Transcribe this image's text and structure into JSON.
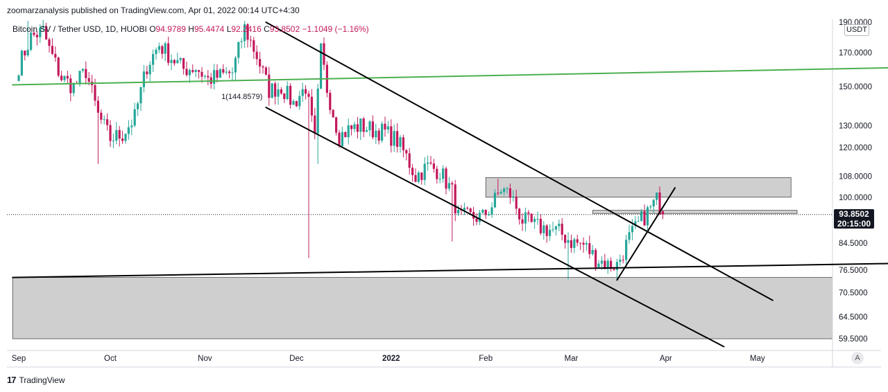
{
  "header": {
    "published_by": "zoomarzanalysis published on TradingView.com, Apr 01, 2022 00:14 UTC+4:30"
  },
  "legend": {
    "symbol": "Bitcoin SV / Tether USD, 1D, HUOBI",
    "open_label": "O",
    "open": "94.9789",
    "high_label": "H",
    "high": "95.4474",
    "low_label": "L",
    "low": "92.2416",
    "close_label": "C",
    "close": "93.8502",
    "change": "−1.1049 (−1.16%)"
  },
  "price_axis": {
    "unit": "USDT",
    "last_price": "93.8502",
    "countdown": "20:15:00"
  },
  "footer": {
    "brand": "TradingView"
  },
  "auto_button": "A",
  "annotation": {
    "text": "1(144.8579)"
  },
  "colors": {
    "up": "#26a69a",
    "down": "#c2185b",
    "trendline": "#4caf50",
    "zone": "#cfcfcf",
    "lines": "#000000"
  },
  "chart_data": {
    "type": "candlestick",
    "title": "Bitcoin SV / Tether USD, 1D, HUOBI",
    "y_scale": "log",
    "ylim": [
      57,
      192
    ],
    "y_ticks": [
      {
        "value": 190,
        "label": "190.0000"
      },
      {
        "value": 170,
        "label": "170.0000"
      },
      {
        "value": 150,
        "label": "150.0000"
      },
      {
        "value": 130,
        "label": "130.0000"
      },
      {
        "value": 120,
        "label": "120.0000"
      },
      {
        "value": 108,
        "label": "108.0000"
      },
      {
        "value": 100,
        "label": "100.0000"
      },
      {
        "value": 84.5,
        "label": "84.5000"
      },
      {
        "value": 76.5,
        "label": "76.5000"
      },
      {
        "value": 70.5,
        "label": "70.5000"
      },
      {
        "value": 64.5,
        "label": "64.5000"
      },
      {
        "value": 59.5,
        "label": "59.5000"
      }
    ],
    "x_ticks": [
      {
        "day": 0,
        "label": "Sep"
      },
      {
        "day": 30,
        "label": "Oct"
      },
      {
        "day": 61,
        "label": "Nov"
      },
      {
        "day": 91,
        "label": "Dec"
      },
      {
        "day": 122,
        "label": "2022"
      },
      {
        "day": 153,
        "label": "Feb"
      },
      {
        "day": 181,
        "label": "Mar"
      },
      {
        "day": 212,
        "label": "Apr"
      },
      {
        "day": 242,
        "label": "May"
      }
    ],
    "close_anchors": [
      [
        0,
        162
      ],
      [
        4,
        180
      ],
      [
        8,
        184
      ],
      [
        10,
        172
      ],
      [
        14,
        155
      ],
      [
        18,
        150
      ],
      [
        22,
        159
      ],
      [
        26,
        135
      ],
      [
        30,
        124
      ],
      [
        34,
        126
      ],
      [
        38,
        134
      ],
      [
        42,
        162
      ],
      [
        46,
        175
      ],
      [
        50,
        167
      ],
      [
        54,
        160
      ],
      [
        58,
        161
      ],
      [
        62,
        154
      ],
      [
        66,
        156
      ],
      [
        70,
        158
      ],
      [
        74,
        186
      ],
      [
        78,
        168
      ],
      [
        82,
        148
      ],
      [
        86,
        150
      ],
      [
        90,
        141
      ],
      [
        94,
        150
      ],
      [
        97,
        123
      ],
      [
        99,
        171
      ],
      [
        101,
        149
      ],
      [
        105,
        125
      ],
      [
        108,
        128
      ],
      [
        112,
        130
      ],
      [
        116,
        128
      ],
      [
        120,
        127
      ],
      [
        124,
        123
      ],
      [
        127,
        116
      ],
      [
        130,
        108
      ],
      [
        134,
        112
      ],
      [
        138,
        110
      ],
      [
        142,
        102
      ],
      [
        144,
        93
      ],
      [
        148,
        93
      ],
      [
        152,
        93
      ],
      [
        155,
        97
      ],
      [
        158,
        103
      ],
      [
        161,
        101
      ],
      [
        165,
        92
      ],
      [
        169,
        90
      ],
      [
        173,
        89
      ],
      [
        177,
        88
      ],
      [
        181,
        85
      ],
      [
        185,
        84
      ],
      [
        189,
        80
      ],
      [
        193,
        78
      ],
      [
        196,
        78
      ],
      [
        200,
        86
      ],
      [
        204,
        92
      ],
      [
        207,
        96
      ],
      [
        209,
        99
      ],
      [
        210,
        97
      ],
      [
        211,
        93.85
      ]
    ],
    "extreme_wicks": [
      {
        "day": 3,
        "high": 191
      },
      {
        "day": 26,
        "low": 113
      },
      {
        "day": 74,
        "high": 191
      },
      {
        "day": 95,
        "low": 80
      },
      {
        "day": 99,
        "high": 175
      },
      {
        "day": 98,
        "low": 113
      },
      {
        "day": 142,
        "low": 85
      },
      {
        "day": 157,
        "high": 107
      },
      {
        "day": 180,
        "low": 74
      },
      {
        "day": 196,
        "low": 74
      },
      {
        "day": 209,
        "high": 101
      }
    ],
    "last_candle": {
      "open": 94.9789,
      "high": 95.4474,
      "low": 92.2416,
      "close": 93.8502
    },
    "last_price_line": 93.8502,
    "zones": [
      {
        "from_day": 153,
        "to_day": 253,
        "low": 100,
        "high": 107.5
      },
      {
        "from_day": 188,
        "to_day": 255,
        "low": 94.2,
        "high": 95.3
      },
      {
        "from_day": -2,
        "to_day": 292,
        "low": 59.5,
        "high": 74.5
      }
    ],
    "lines": [
      {
        "name": "green-trend",
        "color": "#4caf50",
        "p1": [
          -2,
          151
        ],
        "p2": [
          292,
          161
        ]
      },
      {
        "name": "channel-upper",
        "color": "#000000",
        "p1": [
          81,
          190
        ],
        "p2": [
          247,
          68.5
        ]
      },
      {
        "name": "channel-lower",
        "color": "#000000",
        "p1": [
          81,
          139
        ],
        "p2": [
          231,
          57.8
        ]
      },
      {
        "name": "support-line",
        "color": "#000000",
        "p1": [
          -2,
          74.5
        ],
        "p2": [
          292,
          78.5
        ]
      },
      {
        "name": "rising-trend",
        "color": "#000000",
        "p1": [
          196,
          73.8
        ],
        "p2": [
          215,
          103.5
        ]
      }
    ],
    "annotations": [
      {
        "day": 81,
        "value": 144.8579,
        "text": "1(144.8579)"
      }
    ]
  }
}
